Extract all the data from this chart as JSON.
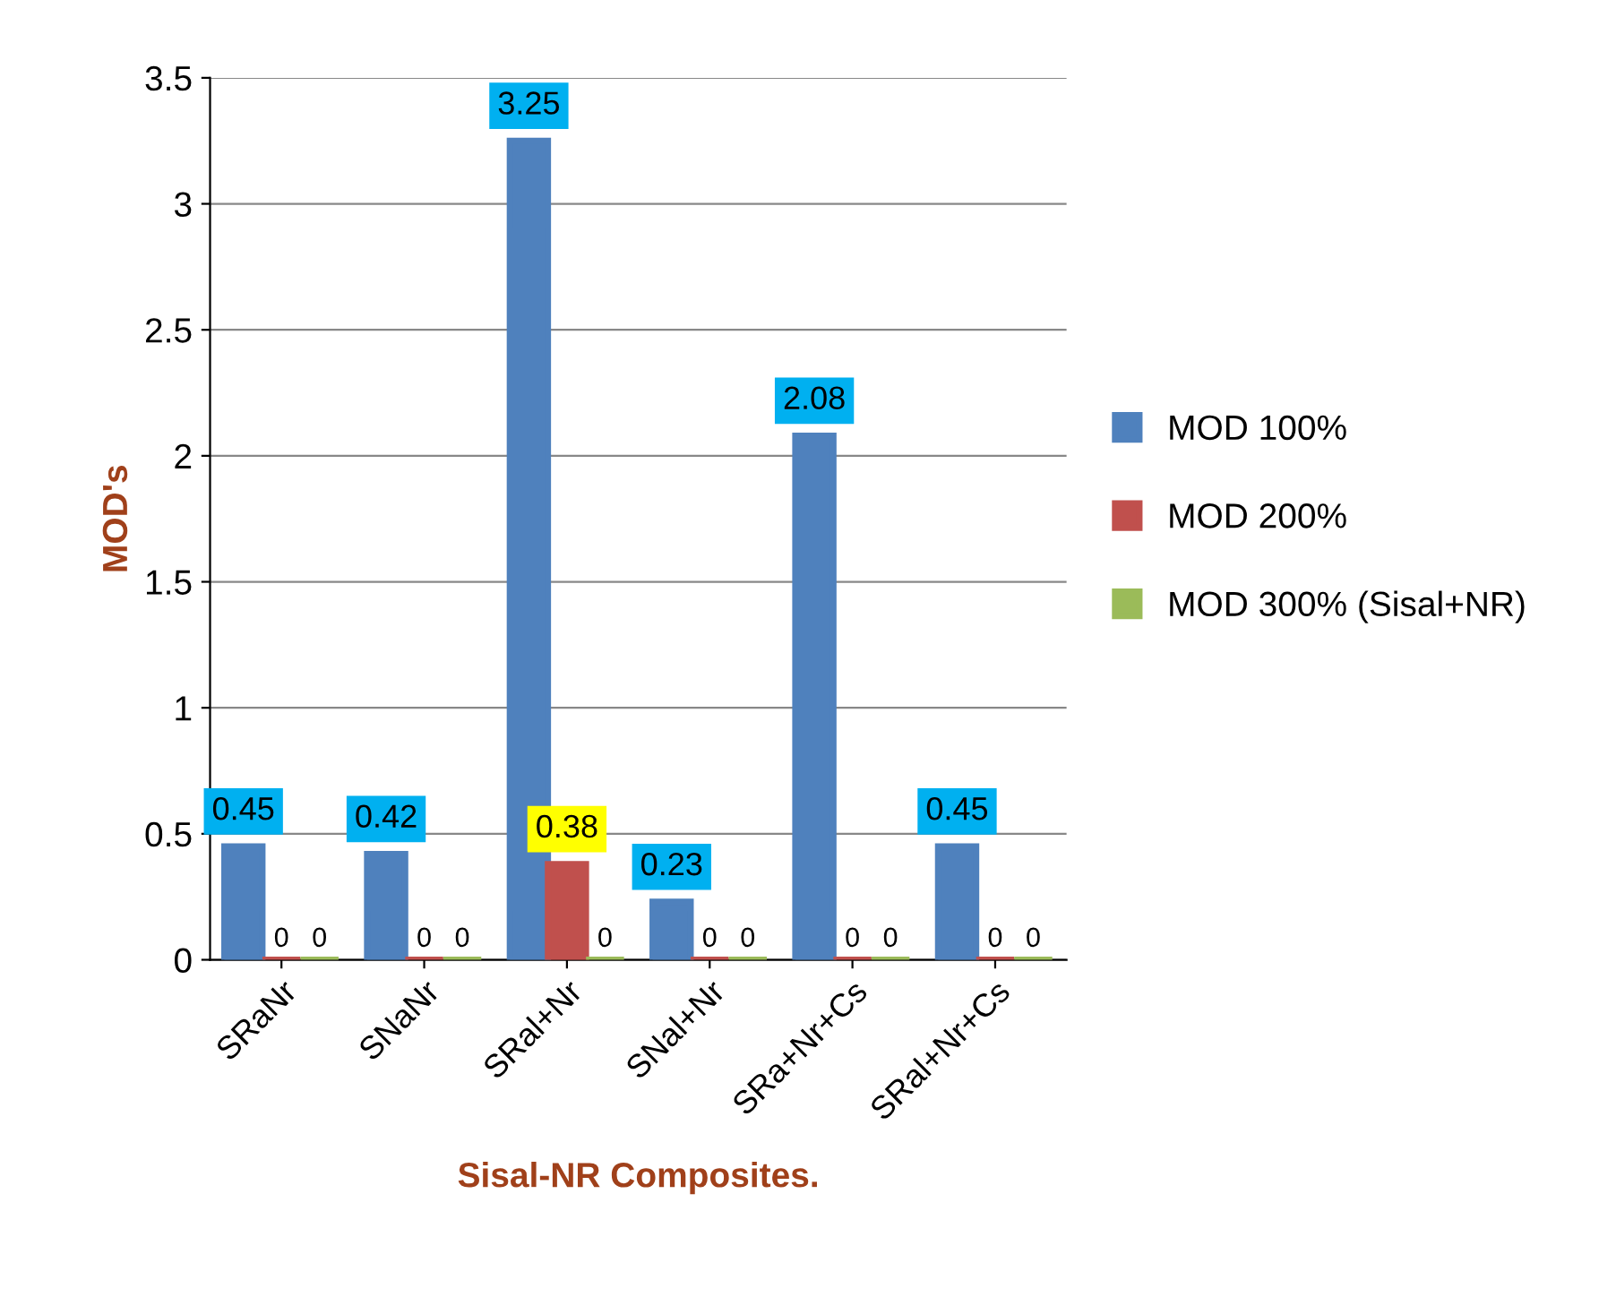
{
  "chart_data": {
    "type": "bar",
    "categories": [
      "SRaNr",
      "SNaNr",
      "SRal+Nr",
      "SNal+Nr",
      "SRa+Nr+Cs",
      "SRal+Nr+Cs"
    ],
    "series": [
      {
        "name": "MOD 100%",
        "color": "#4f81bd",
        "values": [
          0.45,
          0.42,
          3.25,
          0.23,
          2.08,
          0.45
        ]
      },
      {
        "name": "MOD 200%",
        "color": "#c0504d",
        "values": [
          0,
          0,
          0.38,
          0,
          0,
          0
        ]
      },
      {
        "name": "MOD 300% (Sisal+NR)",
        "color": "#9bbb59",
        "values": [
          0,
          0,
          0,
          0,
          0,
          0
        ]
      }
    ],
    "xlabel": "Sisal-NR Composites.",
    "ylabel": "MOD's",
    "ylim": [
      0,
      3.5
    ],
    "yticks": [
      0,
      0.5,
      1,
      1.5,
      2,
      2.5,
      3,
      3.5
    ],
    "grid": "y",
    "legend": "right",
    "data_labels": true
  }
}
